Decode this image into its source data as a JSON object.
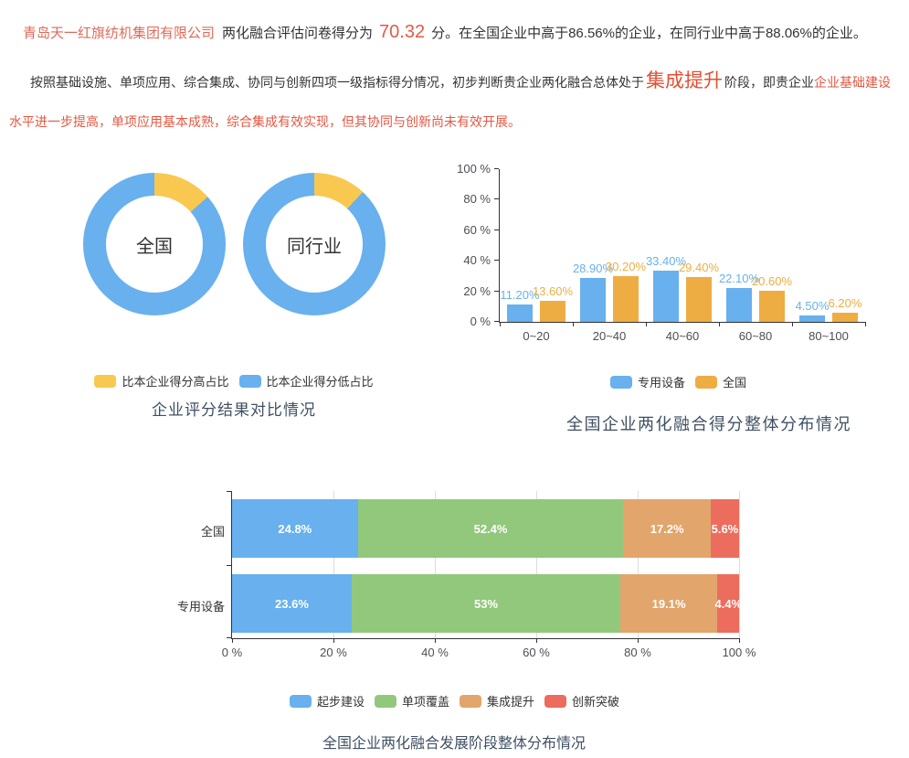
{
  "page": {
    "para1": {
      "company": "青岛天一红旗纺机集团有限公司",
      "mid": "两化融合评估问卷得分为",
      "score": "70.32",
      "tail": "分。在全国企业中高于86.56%的企业，在同行业中高于88.06%的企业。"
    },
    "para2": {
      "lead": "按照基础设施、单项应用、综合集成、协同与创新四项一级指标得分情况，初步判断贵企业两化融合总体处于",
      "stage": "集成提升",
      "after_stage": "阶段，即贵企业",
      "red_line1": "企业基础建设",
      "red_line2": "水平进一步提高，单项应用基本成熟，综合集成有效实现，但其协同与创新尚未有效开展。"
    }
  },
  "colors": {
    "blue": "#68b0ee",
    "yellow": "#f8c851",
    "orange": "#eead42",
    "green": "#92c87c",
    "stack_orange": "#e2a56b",
    "red": "#ec6d5d",
    "title": "#405064",
    "axis": "#333333",
    "accent_red_text": "#e45741",
    "company_name": "#e06a58",
    "score_value": "#e55a43"
  },
  "chart_data": [
    {
      "type": "pie",
      "title": "企业评分结果对比情况",
      "legend": [
        {
          "label": "比本企业得分高占比",
          "color": "#f8c851"
        },
        {
          "label": "比本企业得分低占比",
          "color": "#68b0ee"
        }
      ],
      "donuts": [
        {
          "label": "全国",
          "slices": [
            {
              "name": "比本企业得分高占比",
              "value": 13.44
            },
            {
              "name": "比本企业得分低占比",
              "value": 86.56
            }
          ]
        },
        {
          "label": "同行业",
          "slices": [
            {
              "name": "比本企业得分高占比",
              "value": 11.94
            },
            {
              "name": "比本企业得分低占比",
              "value": 88.06
            }
          ]
        }
      ]
    },
    {
      "type": "bar",
      "title": "全国企业两化融合得分整体分布情况",
      "categories": [
        "0~20",
        "20~40",
        "40~60",
        "60~80",
        "80~100"
      ],
      "series": [
        {
          "name": "专用设备",
          "color": "#68b0ee",
          "values": [
            11.2,
            28.9,
            33.4,
            22.1,
            4.5
          ]
        },
        {
          "name": "全国",
          "color": "#eead42",
          "values": [
            13.6,
            30.2,
            29.4,
            20.6,
            6.2
          ]
        }
      ],
      "y_ticks": [
        0,
        20,
        40,
        60,
        80,
        100
      ],
      "y_suffix": " %",
      "ylim": [
        0,
        100
      ],
      "grid": false,
      "legend_position": "bottom"
    },
    {
      "type": "stacked-bar-horizontal",
      "title": "全国企业两化融合发展阶段整体分布情况",
      "categories": [
        "全国",
        "专用设备"
      ],
      "series": [
        {
          "name": "起步建设",
          "color": "#68b0ee",
          "values": [
            24.8,
            23.6
          ]
        },
        {
          "name": "单项覆盖",
          "color": "#92c87c",
          "values": [
            52.4,
            53
          ]
        },
        {
          "name": "集成提升",
          "color": "#e2a56b",
          "values": [
            17.2,
            19.1
          ]
        },
        {
          "name": "创新突破",
          "color": "#ec6d5d",
          "values": [
            5.6,
            4.4
          ]
        }
      ],
      "x_ticks": [
        0,
        20,
        40,
        60,
        80,
        100
      ],
      "x_suffix": " %",
      "xlim": [
        0,
        100
      ],
      "grid": true,
      "legend_position": "bottom"
    }
  ]
}
